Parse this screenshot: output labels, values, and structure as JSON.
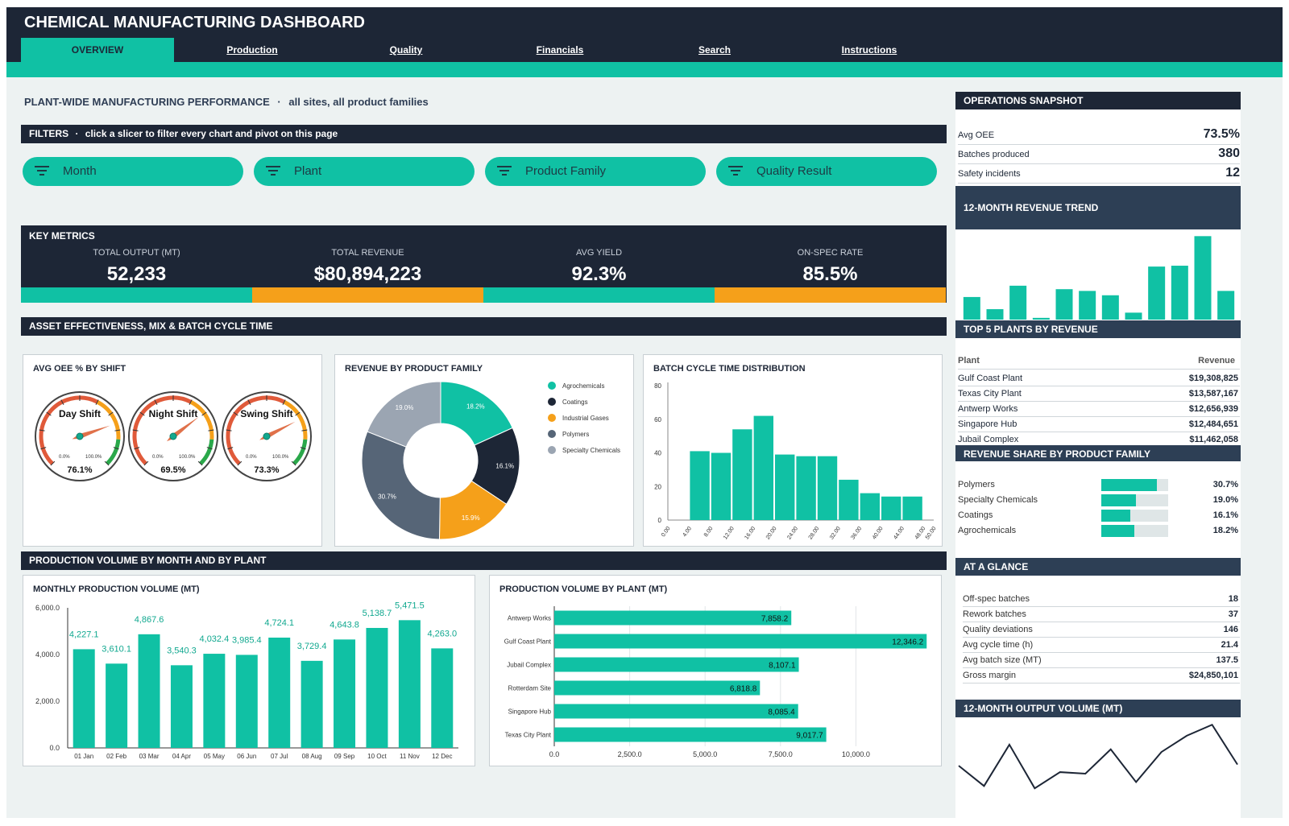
{
  "app_title": "CHEMICAL MANUFACTURING DASHBOARD",
  "tabs": [
    "OVERVIEW",
    "Production",
    "Quality",
    "Financials",
    "Search",
    "Instructions"
  ],
  "page_title": "PLANT-WIDE MANUFACTURING PERFORMANCE",
  "page_subtitle": "all sites, all product families",
  "filters": {
    "title": "FILTERS",
    "hint": "click a slicer to filter every chart and pivot on this page",
    "slicers": [
      "Month",
      "Plant",
      "Product Family",
      "Quality Result"
    ]
  },
  "key_metrics": {
    "title": "KEY METRICS",
    "items": [
      {
        "label": "TOTAL OUTPUT (MT)",
        "value": "52,233"
      },
      {
        "label": "TOTAL REVENUE",
        "value": "$80,894,223"
      },
      {
        "label": "AVG YIELD",
        "value": "92.3%"
      },
      {
        "label": "ON-SPEC RATE",
        "value": "85.5%"
      }
    ]
  },
  "section_asset": "ASSET EFFECTIVENESS, MIX & BATCH CYCLE TIME",
  "section_production": "PRODUCTION VOLUME BY MONTH AND BY PLANT",
  "oee": {
    "title": "AVG OEE % BY SHIFT",
    "min_label": "0.0%",
    "max_label": "100.0%",
    "gauges": [
      {
        "name": "Day Shift",
        "value": 76.1,
        "label": "76.1%"
      },
      {
        "name": "Night Shift",
        "value": 69.5,
        "label": "69.5%"
      },
      {
        "name": "Swing Shift",
        "value": 73.3,
        "label": "73.3%"
      }
    ]
  },
  "colors": {
    "teal": "#10c1a4",
    "orange": "#f5a01a",
    "navy": "#1d2636",
    "slate": "#566577",
    "gray": "#9ba5b2"
  },
  "chart_data": [
    {
      "type": "pie",
      "title": "REVENUE BY PRODUCT FAMILY",
      "categories": [
        "Agrochemicals",
        "Coatings",
        "Industrial Gases",
        "Polymers",
        "Specialty Chemicals"
      ],
      "values": [
        18.2,
        16.1,
        15.9,
        30.7,
        19.0
      ],
      "labels": [
        "18.2%",
        "16.1%",
        "15.9%",
        "30.7%",
        "19.0%"
      ],
      "colors": [
        "#10c1a4",
        "#1d2636",
        "#f5a01a",
        "#566577",
        "#9ba5b2"
      ],
      "legend": "right"
    },
    {
      "type": "bar",
      "title": "BATCH CYCLE TIME DISTRIBUTION",
      "x_ticks": [
        "0.00",
        "4.00",
        "8.00",
        "12.00",
        "16.00",
        "20.00",
        "24.00",
        "28.00",
        "32.00",
        "36.00",
        "40.00",
        "44.00",
        "48.00",
        "50.00"
      ],
      "bins": [
        [
          4,
          8
        ],
        [
          8,
          12
        ],
        [
          12,
          16
        ],
        [
          16,
          20
        ],
        [
          20,
          24
        ],
        [
          24,
          28
        ],
        [
          28,
          32
        ],
        [
          32,
          36
        ],
        [
          36,
          40
        ],
        [
          40,
          44
        ],
        [
          44,
          48
        ]
      ],
      "values": [
        41,
        40,
        54,
        62,
        39,
        38,
        38,
        24,
        16,
        14,
        14
      ],
      "ylim": [
        0,
        80
      ],
      "y_ticks": [
        0,
        20,
        40,
        60,
        80
      ]
    },
    {
      "type": "bar",
      "title": "MONTHLY PRODUCTION VOLUME (MT)",
      "categories": [
        "01 Jan",
        "02 Feb",
        "03 Mar",
        "04 Apr",
        "05 May",
        "06 Jun",
        "07 Jul",
        "08 Aug",
        "09 Sep",
        "10 Oct",
        "11 Nov",
        "12 Dec"
      ],
      "values": [
        4227.1,
        3610.1,
        4867.6,
        3540.3,
        4032.4,
        3985.4,
        4724.1,
        3729.4,
        4643.8,
        5138.7,
        5471.5,
        4263.0
      ],
      "labels": [
        "4,227.1",
        "3,610.1",
        "4,867.6",
        "3,540.3",
        "4,032.4",
        "3,985.4",
        "4,724.1",
        "3,729.4",
        "4,643.8",
        "5,138.7",
        "5,471.5",
        "4,263.0"
      ],
      "ylim": [
        0,
        6000
      ],
      "y_ticks": [
        "0.0",
        "2,000.0",
        "4,000.0",
        "6,000.0"
      ]
    },
    {
      "type": "bar",
      "orientation": "horizontal",
      "title": "PRODUCTION VOLUME BY PLANT (MT)",
      "categories": [
        "Antwerp Works",
        "Gulf Coast Plant",
        "Jubail Complex",
        "Rotterdam Site",
        "Singapore Hub",
        "Texas City Plant"
      ],
      "values": [
        7858.2,
        12346.2,
        8107.1,
        6818.8,
        8085.4,
        9017.7
      ],
      "labels": [
        "7,858.2",
        "12,346.2",
        "8,107.1",
        "6,818.8",
        "8,085.4",
        "9,017.7"
      ],
      "xlim": [
        0,
        12500
      ],
      "x_ticks": [
        "0.0",
        "2,500.0",
        "5,000.0",
        "7,500.0",
        "10,000.0"
      ]
    },
    {
      "type": "bar",
      "title": "12-MONTH REVENUE TREND",
      "values": [
        26,
        12,
        39,
        2,
        35,
        33,
        28,
        8,
        61,
        62,
        96,
        33
      ]
    },
    {
      "type": "line",
      "title": "12-MONTH OUTPUT VOLUME (MT)",
      "values": [
        4227.1,
        3610.1,
        4867.6,
        3540.3,
        4032.4,
        3985.4,
        4724.1,
        3729.4,
        4643.8,
        5138.7,
        5471.5,
        4263.0
      ]
    }
  ],
  "snapshot": {
    "title": "OPERATIONS SNAPSHOT",
    "rows": [
      {
        "k": "Avg OEE",
        "v": "73.5%"
      },
      {
        "k": "Batches produced",
        "v": "380"
      },
      {
        "k": "Safety incidents",
        "v": "12"
      }
    ]
  },
  "top5": {
    "title": "TOP 5 PLANTS BY REVENUE",
    "col_plant": "Plant",
    "col_revenue": "Revenue",
    "rows": [
      {
        "k": "Gulf Coast Plant",
        "v": "$19,308,825"
      },
      {
        "k": "Texas City Plant",
        "v": "$13,587,167"
      },
      {
        "k": "Antwerp Works",
        "v": "$12,656,939"
      },
      {
        "k": "Singapore Hub",
        "v": "$12,484,651"
      },
      {
        "k": "Jubail Complex",
        "v": "$11,462,058"
      }
    ]
  },
  "share": {
    "title": "REVENUE SHARE BY PRODUCT FAMILY",
    "rows": [
      {
        "k": "Polymers",
        "v": "30.7%",
        "pct": 30.7
      },
      {
        "k": "Specialty Chemicals",
        "v": "19.0%",
        "pct": 19.0
      },
      {
        "k": "Coatings",
        "v": "16.1%",
        "pct": 16.1
      },
      {
        "k": "Agrochemicals",
        "v": "18.2%",
        "pct": 18.2
      }
    ]
  },
  "glance": {
    "title": "AT A GLANCE",
    "rows": [
      {
        "k": "Off-spec batches",
        "v": "18"
      },
      {
        "k": "Rework batches",
        "v": "37"
      },
      {
        "k": "Quality deviations",
        "v": "146"
      },
      {
        "k": "Avg cycle time (h)",
        "v": "21.4"
      },
      {
        "k": "Avg batch size (MT)",
        "v": "137.5"
      },
      {
        "k": "Gross margin",
        "v": "$24,850,101"
      }
    ]
  }
}
